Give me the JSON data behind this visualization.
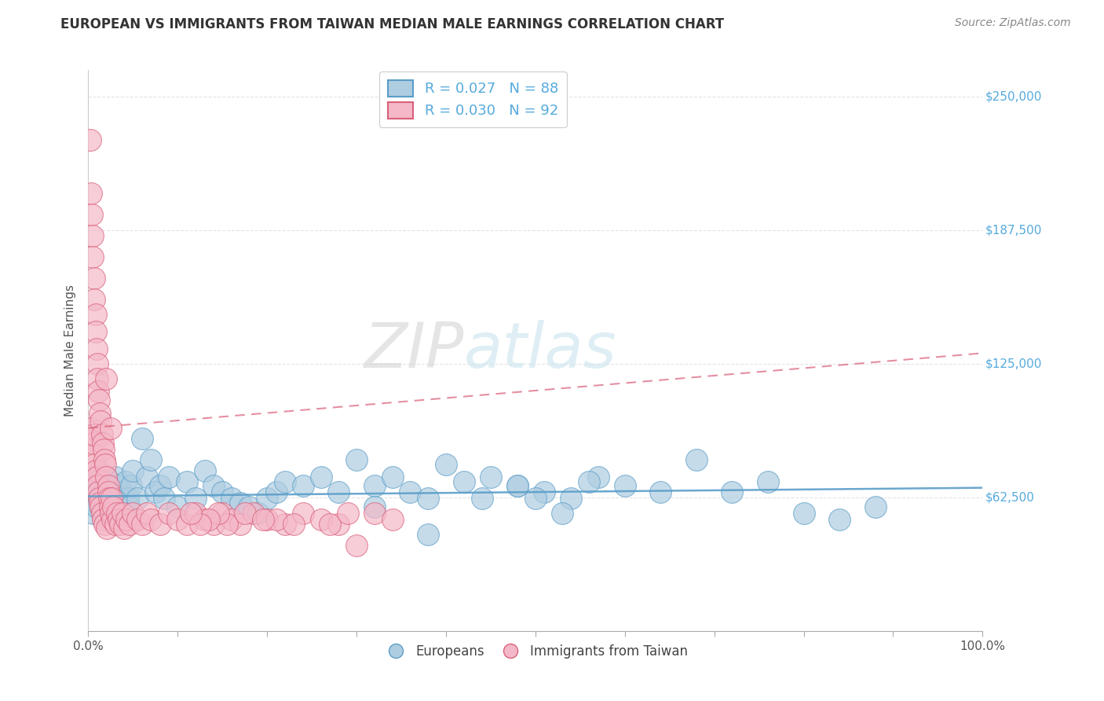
{
  "title": "EUROPEAN VS IMMIGRANTS FROM TAIWAN MEDIAN MALE EARNINGS CORRELATION CHART",
  "source": "Source: ZipAtlas.com",
  "ylabel": "Median Male Earnings",
  "background_color": "#ffffff",
  "grid_color": "#dddddd",
  "blue_color": "#aecde1",
  "pink_color": "#f4b8c8",
  "blue_edge_color": "#5b9ec9",
  "pink_edge_color": "#d9607a",
  "blue_trend_color": "#5b9ec9",
  "pink_trend_color": "#d9607a",
  "R_blue": 0.027,
  "N_blue": 88,
  "R_pink": 0.03,
  "N_pink": 92,
  "legend_blue": "Europeans",
  "legend_pink": "Immigrants from Taiwan",
  "title_color": "#333333",
  "label_color": "#55aadd",
  "watermark_color": "#d0e8f0",
  "ytick_color": "#55aadd",
  "blue_scatter_x": [
    0.004,
    0.006,
    0.007,
    0.008,
    0.009,
    0.01,
    0.01,
    0.011,
    0.012,
    0.013,
    0.014,
    0.015,
    0.016,
    0.017,
    0.018,
    0.019,
    0.02,
    0.021,
    0.022,
    0.023,
    0.024,
    0.025,
    0.026,
    0.027,
    0.028,
    0.029,
    0.03,
    0.032,
    0.034,
    0.036,
    0.038,
    0.04,
    0.042,
    0.044,
    0.046,
    0.048,
    0.05,
    0.055,
    0.06,
    0.065,
    0.07,
    0.075,
    0.08,
    0.085,
    0.09,
    0.1,
    0.11,
    0.12,
    0.13,
    0.14,
    0.15,
    0.16,
    0.17,
    0.18,
    0.19,
    0.2,
    0.21,
    0.22,
    0.24,
    0.26,
    0.28,
    0.3,
    0.32,
    0.34,
    0.36,
    0.38,
    0.4,
    0.42,
    0.45,
    0.48,
    0.51,
    0.54,
    0.57,
    0.6,
    0.64,
    0.68,
    0.72,
    0.76,
    0.8,
    0.84,
    0.88,
    0.5,
    0.56,
    0.32,
    0.38,
    0.44,
    0.48,
    0.53
  ],
  "blue_scatter_y": [
    62000,
    55000,
    70000,
    60000,
    58000,
    65000,
    72000,
    68000,
    62000,
    75000,
    58000,
    70000,
    65000,
    60000,
    55000,
    62000,
    68000,
    72000,
    58000,
    64000,
    60000,
    55000,
    62000,
    58000,
    65000,
    60000,
    72000,
    68000,
    62000,
    58000,
    65000,
    55000,
    70000,
    62000,
    58000,
    68000,
    75000,
    62000,
    90000,
    72000,
    80000,
    65000,
    68000,
    62000,
    72000,
    58000,
    70000,
    62000,
    75000,
    68000,
    65000,
    62000,
    60000,
    58000,
    55000,
    62000,
    65000,
    70000,
    68000,
    72000,
    65000,
    80000,
    68000,
    72000,
    65000,
    62000,
    78000,
    70000,
    72000,
    68000,
    65000,
    62000,
    72000,
    68000,
    65000,
    80000,
    65000,
    70000,
    55000,
    52000,
    58000,
    62000,
    70000,
    58000,
    45000,
    62000,
    68000,
    55000
  ],
  "pink_scatter_x": [
    0.002,
    0.003,
    0.003,
    0.004,
    0.004,
    0.005,
    0.005,
    0.005,
    0.006,
    0.006,
    0.007,
    0.007,
    0.007,
    0.008,
    0.008,
    0.008,
    0.009,
    0.009,
    0.01,
    0.01,
    0.01,
    0.011,
    0.011,
    0.012,
    0.012,
    0.013,
    0.013,
    0.014,
    0.014,
    0.015,
    0.015,
    0.016,
    0.016,
    0.017,
    0.018,
    0.018,
    0.019,
    0.02,
    0.02,
    0.021,
    0.022,
    0.022,
    0.023,
    0.024,
    0.025,
    0.025,
    0.026,
    0.027,
    0.028,
    0.03,
    0.032,
    0.034,
    0.036,
    0.038,
    0.04,
    0.043,
    0.046,
    0.05,
    0.055,
    0.06,
    0.065,
    0.07,
    0.08,
    0.09,
    0.1,
    0.11,
    0.12,
    0.13,
    0.14,
    0.15,
    0.16,
    0.17,
    0.185,
    0.2,
    0.22,
    0.24,
    0.26,
    0.28,
    0.3,
    0.32,
    0.34,
    0.27,
    0.29,
    0.21,
    0.23,
    0.175,
    0.195,
    0.155,
    0.145,
    0.135,
    0.125,
    0.115
  ],
  "pink_scatter_y": [
    230000,
    205000,
    95000,
    90000,
    195000,
    185000,
    175000,
    82000,
    88000,
    92000,
    165000,
    155000,
    78000,
    148000,
    140000,
    75000,
    132000,
    72000,
    125000,
    118000,
    68000,
    112000,
    65000,
    108000,
    62000,
    102000,
    60000,
    98000,
    58000,
    92000,
    55000,
    88000,
    52000,
    85000,
    80000,
    50000,
    78000,
    118000,
    72000,
    48000,
    68000,
    65000,
    62000,
    58000,
    95000,
    55000,
    62000,
    52000,
    58000,
    50000,
    55000,
    52000,
    50000,
    55000,
    48000,
    52000,
    50000,
    55000,
    52000,
    50000,
    55000,
    52000,
    50000,
    55000,
    52000,
    50000,
    55000,
    52000,
    50000,
    55000,
    52000,
    50000,
    55000,
    52000,
    50000,
    55000,
    52000,
    50000,
    40000,
    55000,
    52000,
    50000,
    55000,
    52000,
    50000,
    55000,
    52000,
    50000,
    55000,
    52000,
    50000,
    55000
  ],
  "ylim": [
    0,
    262500
  ],
  "xlim": [
    0.0,
    1.0
  ],
  "yticks": [
    62500,
    125000,
    187500,
    250000
  ],
  "ytick_labels": [
    "$62,500",
    "$125,000",
    "$187,500",
    "$250,000"
  ],
  "blue_trend_intercept": 63000,
  "blue_trend_slope": 4000,
  "pink_trend_intercept": 95000,
  "pink_trend_slope": 35000
}
